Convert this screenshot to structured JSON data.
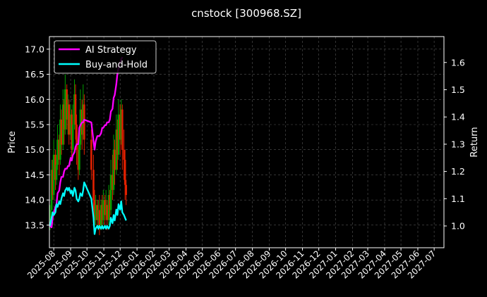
{
  "chart_data": {
    "type": "line",
    "title": "cnstock [300968.SZ]",
    "ylabel_left": "Price",
    "ylabel_right": "Return",
    "xlabel": "",
    "grid": true,
    "legend_position": "top-left",
    "x_ticks": [
      "2025-08",
      "2025-09",
      "2025-10",
      "2025-11",
      "2025-12",
      "2026-01",
      "2026-02",
      "2026-03",
      "2026-04",
      "2026-05",
      "2026-06",
      "2026-07",
      "2026-08",
      "2026-09",
      "2026-10",
      "2026-11",
      "2026-12",
      "2027-01",
      "2027-02",
      "2027-03",
      "2027-04",
      "2027-05",
      "2027-06",
      "2027-07"
    ],
    "xlim": [
      "2025-07-24",
      "2027-07-19"
    ],
    "y_left_ticks": [
      13.5,
      14.0,
      14.5,
      15.0,
      15.5,
      16.0,
      16.5,
      17.0
    ],
    "y_left_lim": [
      13.05,
      17.25
    ],
    "y_right_ticks": [
      1.0,
      1.1,
      1.2,
      1.3,
      1.4,
      1.5,
      1.6
    ],
    "y_right_lim": [
      0.92,
      1.695
    ],
    "colors": {
      "ai_strategy": "#ff00ff",
      "buy_and_hold": "#00ffff",
      "candle_up": "#00a000",
      "candle_down": "#e02000",
      "grid": "#555555"
    },
    "series": [
      {
        "name": "AI Strategy",
        "axis": "right",
        "points": [
          [
            "2025-07-25",
            1.0
          ],
          [
            "2025-07-28",
            0.995
          ],
          [
            "2025-07-30",
            1.03
          ],
          [
            "2025-08-01",
            1.05
          ],
          [
            "2025-08-04",
            1.07
          ],
          [
            "2025-08-06",
            1.08
          ],
          [
            "2025-08-08",
            1.12
          ],
          [
            "2025-08-11",
            1.13
          ],
          [
            "2025-08-13",
            1.16
          ],
          [
            "2025-08-15",
            1.18
          ],
          [
            "2025-08-18",
            1.18
          ],
          [
            "2025-08-20",
            1.2
          ],
          [
            "2025-08-22",
            1.21
          ],
          [
            "2025-08-25",
            1.21
          ],
          [
            "2025-08-27",
            1.22
          ],
          [
            "2025-08-29",
            1.22
          ],
          [
            "2025-09-01",
            1.25
          ],
          [
            "2025-09-03",
            1.24
          ],
          [
            "2025-09-05",
            1.26
          ],
          [
            "2025-09-08",
            1.27
          ],
          [
            "2025-09-10",
            1.29
          ],
          [
            "2025-09-12",
            1.3
          ],
          [
            "2025-09-15",
            1.3
          ],
          [
            "2025-09-17",
            1.36
          ],
          [
            "2025-09-19",
            1.37
          ],
          [
            "2025-09-22",
            1.38
          ],
          [
            "2025-09-24",
            1.38
          ],
          [
            "2025-09-26",
            1.39
          ],
          [
            "2025-10-09",
            1.38
          ],
          [
            "2025-10-13",
            1.31
          ],
          [
            "2025-10-15",
            1.28
          ],
          [
            "2025-10-17",
            1.31
          ],
          [
            "2025-10-20",
            1.33
          ],
          [
            "2025-10-22",
            1.33
          ],
          [
            "2025-10-24",
            1.33
          ],
          [
            "2025-10-27",
            1.34
          ],
          [
            "2025-10-29",
            1.36
          ],
          [
            "2025-10-31",
            1.36
          ],
          [
            "2025-11-03",
            1.37
          ],
          [
            "2025-11-05",
            1.37
          ],
          [
            "2025-11-07",
            1.38
          ],
          [
            "2025-11-10",
            1.38
          ],
          [
            "2025-11-12",
            1.39
          ],
          [
            "2025-11-14",
            1.42
          ],
          [
            "2025-11-17",
            1.43
          ],
          [
            "2025-11-19",
            1.47
          ],
          [
            "2025-11-21",
            1.48
          ],
          [
            "2025-11-24",
            1.52
          ],
          [
            "2025-11-26",
            1.56
          ],
          [
            "2025-11-28",
            1.58
          ],
          [
            "2025-12-01",
            1.6
          ],
          [
            "2025-12-03",
            1.61
          ],
          [
            "2025-12-05",
            1.62
          ]
        ]
      },
      {
        "name": "Buy-and-Hold",
        "axis": "right",
        "points": [
          [
            "2025-07-25",
            1.0
          ],
          [
            "2025-07-28",
            1.03
          ],
          [
            "2025-07-30",
            1.05
          ],
          [
            "2025-08-01",
            1.04
          ],
          [
            "2025-08-04",
            1.05
          ],
          [
            "2025-08-06",
            1.08
          ],
          [
            "2025-08-08",
            1.07
          ],
          [
            "2025-08-11",
            1.09
          ],
          [
            "2025-08-13",
            1.08
          ],
          [
            "2025-08-15",
            1.1
          ],
          [
            "2025-08-18",
            1.12
          ],
          [
            "2025-08-20",
            1.11
          ],
          [
            "2025-08-22",
            1.13
          ],
          [
            "2025-08-25",
            1.14
          ],
          [
            "2025-08-27",
            1.13
          ],
          [
            "2025-08-29",
            1.14
          ],
          [
            "2025-09-01",
            1.12
          ],
          [
            "2025-09-03",
            1.13
          ],
          [
            "2025-09-05",
            1.11
          ],
          [
            "2025-09-08",
            1.14
          ],
          [
            "2025-09-10",
            1.13
          ],
          [
            "2025-09-12",
            1.1
          ],
          [
            "2025-09-15",
            1.09
          ],
          [
            "2025-09-17",
            1.1
          ],
          [
            "2025-09-19",
            1.12
          ],
          [
            "2025-09-22",
            1.11
          ],
          [
            "2025-09-24",
            1.13
          ],
          [
            "2025-09-26",
            1.16
          ],
          [
            "2025-10-09",
            1.1
          ],
          [
            "2025-10-13",
            1.03
          ],
          [
            "2025-10-15",
            0.97
          ],
          [
            "2025-10-17",
            0.99
          ],
          [
            "2025-10-20",
            1.0
          ],
          [
            "2025-10-22",
            0.99
          ],
          [
            "2025-10-24",
            1.0
          ],
          [
            "2025-10-27",
            0.99
          ],
          [
            "2025-10-29",
            1.0
          ],
          [
            "2025-10-31",
            0.99
          ],
          [
            "2025-11-03",
            1.0
          ],
          [
            "2025-11-05",
            0.99
          ],
          [
            "2025-11-07",
            1.0
          ],
          [
            "2025-11-10",
            0.99
          ],
          [
            "2025-11-12",
            1.0
          ],
          [
            "2025-11-14",
            1.03
          ],
          [
            "2025-11-17",
            1.01
          ],
          [
            "2025-11-19",
            1.04
          ],
          [
            "2025-11-21",
            1.02
          ],
          [
            "2025-11-24",
            1.06
          ],
          [
            "2025-11-26",
            1.04
          ],
          [
            "2025-11-28",
            1.08
          ],
          [
            "2025-12-01",
            1.06
          ],
          [
            "2025-12-03",
            1.09
          ],
          [
            "2025-12-05",
            1.05
          ],
          [
            "2025-12-08",
            1.04
          ],
          [
            "2025-12-10",
            1.03
          ],
          [
            "2025-12-12",
            1.02
          ]
        ]
      }
    ],
    "candles": [
      [
        "2025-07-25",
        13.52,
        13.8,
        13.4,
        13.9
      ],
      [
        "2025-07-28",
        13.8,
        14.6,
        13.7,
        14.8
      ],
      [
        "2025-07-30",
        14.6,
        14.1,
        14.0,
        14.8
      ],
      [
        "2025-08-01",
        14.1,
        14.9,
        14.0,
        15.2
      ],
      [
        "2025-08-04",
        14.9,
        14.4,
        14.2,
        15.0
      ],
      [
        "2025-08-06",
        14.4,
        14.7,
        14.3,
        14.9
      ],
      [
        "2025-08-08",
        14.7,
        15.2,
        14.6,
        15.5
      ],
      [
        "2025-08-11",
        15.2,
        14.8,
        14.5,
        15.3
      ],
      [
        "2025-08-13",
        14.8,
        15.6,
        14.7,
        15.9
      ],
      [
        "2025-08-15",
        15.6,
        15.1,
        14.9,
        15.8
      ],
      [
        "2025-08-18",
        15.1,
        15.9,
        15.0,
        16.2
      ],
      [
        "2025-08-20",
        15.9,
        15.4,
        15.1,
        16.0
      ],
      [
        "2025-08-22",
        15.4,
        16.2,
        15.3,
        16.5
      ],
      [
        "2025-08-25",
        16.2,
        15.6,
        15.4,
        16.3
      ],
      [
        "2025-08-27",
        15.6,
        15.9,
        15.3,
        16.1
      ],
      [
        "2025-08-29",
        15.9,
        15.3,
        15.1,
        16.0
      ],
      [
        "2025-09-01",
        15.3,
        15.7,
        15.2,
        15.9
      ],
      [
        "2025-09-03",
        15.7,
        15.0,
        14.8,
        15.8
      ],
      [
        "2025-09-05",
        15.0,
        15.5,
        14.9,
        15.9
      ],
      [
        "2025-09-08",
        15.5,
        16.1,
        15.4,
        16.4
      ],
      [
        "2025-09-10",
        16.1,
        15.5,
        15.2,
        16.3
      ],
      [
        "2025-09-12",
        15.5,
        15.0,
        14.7,
        15.7
      ],
      [
        "2025-09-15",
        15.0,
        14.6,
        14.4,
        15.2
      ],
      [
        "2025-09-17",
        14.6,
        15.1,
        14.5,
        15.4
      ],
      [
        "2025-09-19",
        15.1,
        15.8,
        15.0,
        16.2
      ],
      [
        "2025-09-22",
        15.8,
        15.3,
        15.0,
        16.0
      ],
      [
        "2025-09-24",
        15.3,
        15.9,
        15.2,
        16.3
      ],
      [
        "2025-09-26",
        15.9,
        15.2,
        14.9,
        16.1
      ],
      [
        "2025-10-09",
        15.2,
        14.6,
        14.4,
        15.4
      ],
      [
        "2025-10-13",
        14.6,
        14.0,
        13.8,
        14.9
      ],
      [
        "2025-10-15",
        14.0,
        13.6,
        13.5,
        14.2
      ],
      [
        "2025-10-17",
        13.6,
        13.9,
        13.5,
        14.1
      ],
      [
        "2025-10-20",
        13.9,
        13.6,
        13.5,
        14.0
      ],
      [
        "2025-10-22",
        13.6,
        13.8,
        13.4,
        14.0
      ],
      [
        "2025-10-24",
        13.8,
        13.5,
        13.3,
        14.1
      ],
      [
        "2025-10-27",
        13.5,
        13.9,
        13.4,
        14.0
      ],
      [
        "2025-10-29",
        13.9,
        13.6,
        13.5,
        14.1
      ],
      [
        "2025-10-31",
        13.6,
        14.0,
        13.5,
        14.2
      ],
      [
        "2025-11-03",
        14.0,
        13.7,
        13.5,
        14.1
      ],
      [
        "2025-11-05",
        13.7,
        13.9,
        13.6,
        14.2
      ],
      [
        "2025-11-07",
        13.9,
        13.6,
        13.4,
        14.0
      ],
      [
        "2025-11-10",
        13.6,
        14.1,
        13.5,
        14.3
      ],
      [
        "2025-11-12",
        14.1,
        13.8,
        13.6,
        14.2
      ],
      [
        "2025-11-14",
        13.8,
        14.5,
        13.7,
        14.8
      ],
      [
        "2025-11-17",
        14.5,
        14.2,
        14.0,
        14.9
      ],
      [
        "2025-11-19",
        14.2,
        15.0,
        14.1,
        15.3
      ],
      [
        "2025-11-21",
        15.0,
        14.6,
        14.3,
        15.2
      ],
      [
        "2025-11-24",
        14.6,
        15.4,
        14.5,
        15.7
      ],
      [
        "2025-11-26",
        15.4,
        14.9,
        14.6,
        15.6
      ],
      [
        "2025-11-28",
        14.9,
        15.7,
        14.8,
        16.0
      ],
      [
        "2025-12-01",
        15.7,
        15.2,
        14.9,
        15.9
      ],
      [
        "2025-12-03",
        15.2,
        15.8,
        15.1,
        16.0
      ],
      [
        "2025-12-05",
        15.8,
        15.0,
        14.6,
        15.9
      ],
      [
        "2025-12-08",
        15.0,
        14.8,
        14.4,
        15.4
      ],
      [
        "2025-12-10",
        14.8,
        14.3,
        14.0,
        15.0
      ],
      [
        "2025-12-12",
        14.3,
        14.1,
        13.9,
        14.4
      ]
    ]
  }
}
